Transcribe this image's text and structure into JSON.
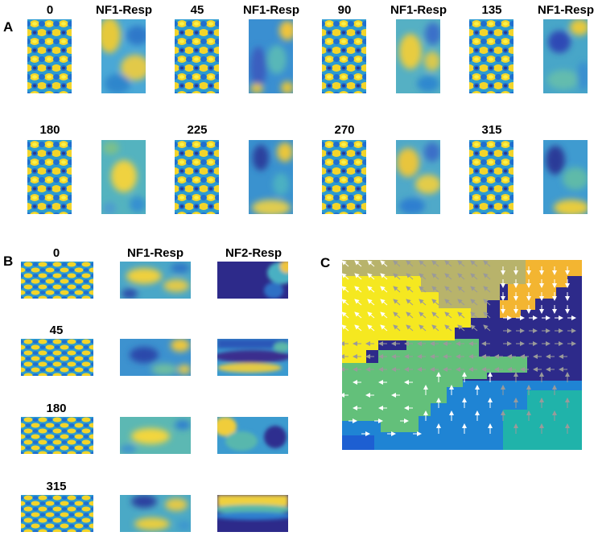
{
  "figure": {
    "panels": {
      "A": {
        "letter": "A",
        "row1": [
          "0",
          "NF1-Resp",
          "45",
          "NF1-Resp",
          "90",
          "NF1-Resp",
          "135",
          "NF1-Resp"
        ],
        "row2": [
          "180",
          "",
          "225",
          "",
          "270",
          "",
          "315",
          ""
        ]
      },
      "B": {
        "letter": "B",
        "columns": [
          "0",
          "NF1-Resp",
          "NF2-Resp"
        ],
        "row_labels": [
          "0",
          "45",
          "180",
          "315"
        ]
      },
      "C": {
        "letter": "C"
      }
    },
    "colormap": {
      "deep_blue": "#2d2a8a",
      "blue": "#1f7fd6",
      "cyan": "#20b3aa",
      "green": "#63c07a",
      "yellow": "#f5e820",
      "orange": "#f3b531",
      "olive": "#b8b36b"
    }
  }
}
